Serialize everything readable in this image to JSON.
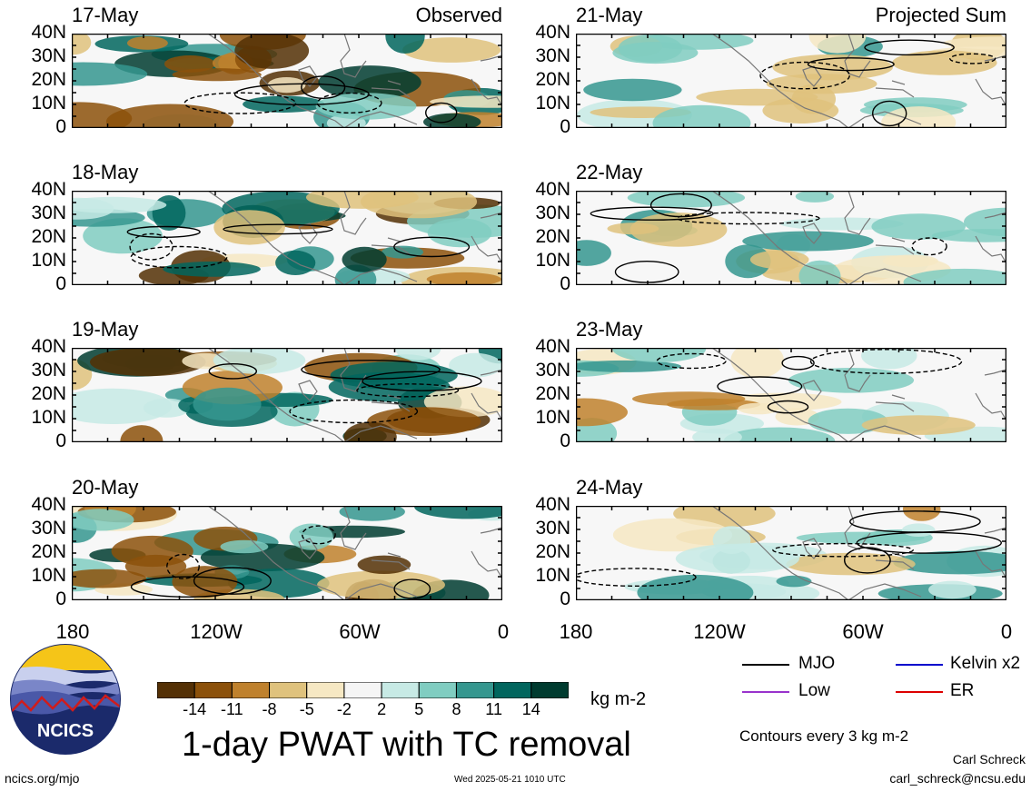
{
  "panels_left": [
    {
      "date": "17-May",
      "tag": "Observed"
    },
    {
      "date": "18-May",
      "tag": ""
    },
    {
      "date": "19-May",
      "tag": ""
    },
    {
      "date": "20-May",
      "tag": ""
    }
  ],
  "panels_right": [
    {
      "date": "21-May",
      "tag": "Projected Sum"
    },
    {
      "date": "22-May",
      "tag": ""
    },
    {
      "date": "23-May",
      "tag": ""
    },
    {
      "date": "24-May",
      "tag": ""
    }
  ],
  "lat_labels": [
    "40N",
    "30N",
    "20N",
    "10N",
    "0"
  ],
  "lon_labels": [
    "180",
    "120W",
    "60W",
    "0"
  ],
  "colorbar": {
    "labels": [
      "-14",
      "-11",
      "-8",
      "-5",
      "-2",
      "2",
      "5",
      "8",
      "11",
      "14"
    ],
    "colors": [
      "#543005",
      "#8c510a",
      "#bf812d",
      "#dfc27d",
      "#f6e8c3",
      "#f5f5f5",
      "#c7eae5",
      "#80cdc1",
      "#35978f",
      "#01665e",
      "#003c30"
    ],
    "units": "kg m-2"
  },
  "title": "1-day PWAT with TC removal",
  "legend": {
    "items": [
      {
        "label": "MJO",
        "color": "#000000"
      },
      {
        "label": "Kelvin x2",
        "color": "#0000cc"
      },
      {
        "label": "Low",
        "color": "#9933cc"
      },
      {
        "label": "ER",
        "color": "#dd0000"
      }
    ],
    "note": "Contours every 3 kg m-2"
  },
  "logo_text": "NCICS",
  "footer": {
    "url": "ncics.org/mjo",
    "timestamp": "Wed 2025-05-21 1010 UTC",
    "author": "Carl Schreck",
    "email": "carl_schreck@ncsu.edu"
  }
}
